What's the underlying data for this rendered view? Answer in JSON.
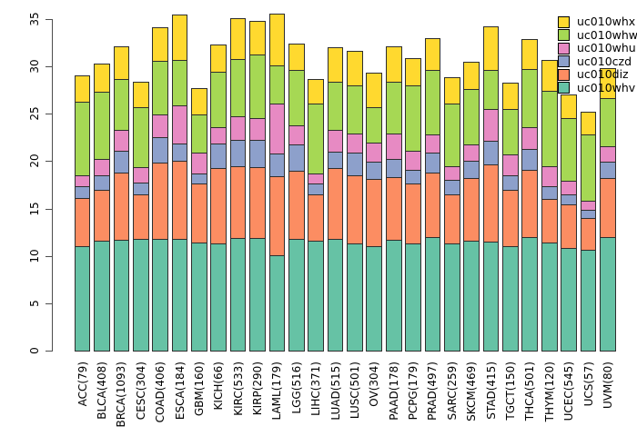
{
  "chart_data": {
    "type": "bar",
    "stacked": true,
    "title": "",
    "xlabel": "",
    "ylabel": "",
    "ylim": [
      0,
      35
    ],
    "y_ticks": [
      0,
      5,
      10,
      15,
      20,
      25,
      30,
      35
    ],
    "grid": false,
    "legend_position": "top-right",
    "categories": [
      "ACC(79)",
      "BLCA(408)",
      "BRCA(1093)",
      "CESC(304)",
      "COAD(406)",
      "ESCA(184)",
      "GBM(160)",
      "KICH(66)",
      "KIRC(533)",
      "KIRP(290)",
      "LAML(179)",
      "LGG(516)",
      "LIHC(371)",
      "LUAD(515)",
      "LUSC(501)",
      "OV(304)",
      "PAAD(178)",
      "PCPG(179)",
      "PRAD(497)",
      "SARC(259)",
      "SKCM(469)",
      "STAD(415)",
      "TGCT(150)",
      "THCA(501)",
      "THYM(120)",
      "UCEC(545)",
      "UCS(57)",
      "UVM(80)"
    ],
    "series": [
      {
        "name": "uc010whv",
        "color": "#66C2A5",
        "values": [
          11.0,
          11.6,
          11.7,
          11.8,
          11.8,
          11.8,
          11.4,
          11.3,
          11.9,
          11.9,
          10.1,
          11.8,
          11.6,
          11.8,
          11.3,
          11.0,
          11.7,
          11.3,
          12.0,
          11.3,
          11.6,
          11.5,
          11.0,
          12.0,
          11.4,
          10.8,
          10.6,
          12.0
        ]
      },
      {
        "name": "uc010diz",
        "color": "#FC8D62",
        "values": [
          5.1,
          5.4,
          7.1,
          4.7,
          8.0,
          8.2,
          6.2,
          8.0,
          7.6,
          7.5,
          8.3,
          7.2,
          4.9,
          7.5,
          7.2,
          7.1,
          6.6,
          6.3,
          6.8,
          5.2,
          6.6,
          8.2,
          6.0,
          7.1,
          4.6,
          4.6,
          3.4,
          6.2
        ]
      },
      {
        "name": "uc010czd",
        "color": "#8DA0CB",
        "values": [
          1.3,
          1.5,
          2.3,
          1.2,
          2.7,
          1.9,
          1.1,
          2.6,
          2.7,
          2.8,
          2.4,
          2.8,
          1.1,
          1.7,
          2.4,
          1.8,
          1.9,
          1.5,
          2.1,
          1.5,
          1.8,
          2.4,
          1.5,
          2.2,
          1.4,
          1.1,
          0.9,
          1.7
        ]
      },
      {
        "name": "uc010whu",
        "color": "#E78AC3",
        "values": [
          1.1,
          1.7,
          2.2,
          1.7,
          2.4,
          4.0,
          2.2,
          1.7,
          2.5,
          2.3,
          5.3,
          1.95,
          1.1,
          2.3,
          2.0,
          2.1,
          2.7,
          2.0,
          1.9,
          1.5,
          1.8,
          3.4,
          2.2,
          2.3,
          2.1,
          1.4,
          0.9,
          1.7
        ]
      },
      {
        "name": "uc010whw",
        "color": "#A6D854",
        "values": [
          7.8,
          7.1,
          5.4,
          6.3,
          5.7,
          4.8,
          4.0,
          5.8,
          6.1,
          6.8,
          4.0,
          5.85,
          7.4,
          5.1,
          5.1,
          3.7,
          5.5,
          6.9,
          6.8,
          6.6,
          5.8,
          4.1,
          4.8,
          6.1,
          7.9,
          6.6,
          7.0,
          5.1
        ]
      },
      {
        "name": "uc010whx",
        "color": "#FFD92F",
        "values": [
          2.7,
          2.9,
          3.3,
          2.6,
          3.4,
          4.7,
          2.7,
          2.8,
          4.2,
          3.4,
          5.4,
          2.7,
          2.5,
          3.5,
          3.5,
          3.5,
          3.6,
          2.8,
          3.3,
          2.7,
          2.8,
          4.5,
          2.7,
          3.1,
          3.2,
          2.4,
          2.3,
          3.0
        ]
      }
    ],
    "legend_order_top_to_bottom": [
      "uc010whx",
      "uc010whw",
      "uc010whu",
      "uc010czd",
      "uc010diz",
      "uc010whv"
    ]
  },
  "style": {
    "bar_border_color": "#2e2e2e",
    "axis_color": "#4d4d4d",
    "text_color": "#000000",
    "background": "#ffffff"
  }
}
